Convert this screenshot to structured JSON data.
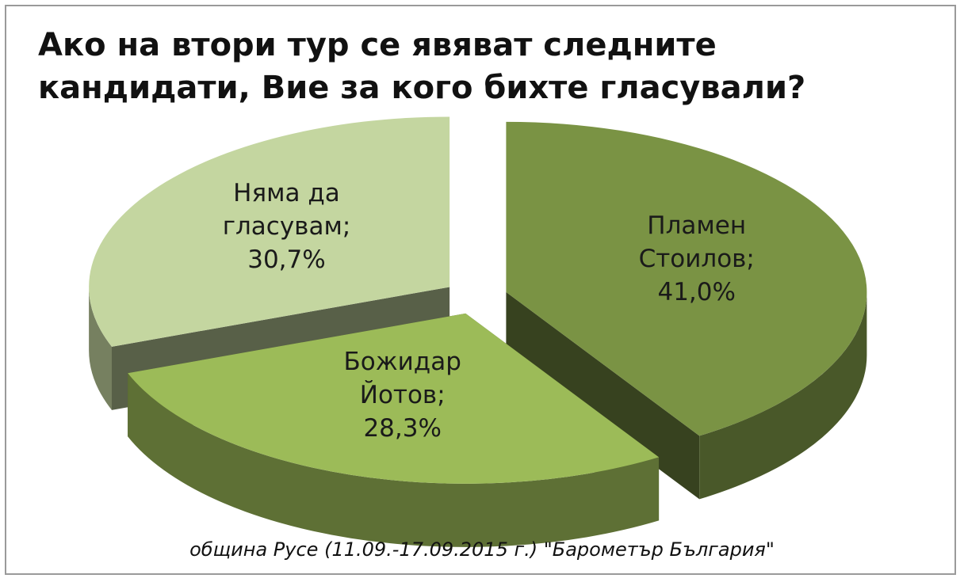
{
  "title_lines": [
    "Ако на втори тур се явяват следните",
    "кандидати, Вие за кого бихте гласували?"
  ],
  "caption": "община Русе (11.09.-17.09.2015 г.) \"Барометър България\"",
  "chart_data": {
    "type": "pie",
    "title": "Ако на втори тур се явяват следните кандидати, Вие за кого бихте гласували?",
    "slices": [
      {
        "name": "Пламен Стоилов",
        "value": 41.0,
        "label_lines": [
          "Пламен",
          "Стоилов;",
          "41,0%"
        ],
        "color": "#7a9344"
      },
      {
        "name": "Божидар Йотов",
        "value": 28.3,
        "label_lines": [
          "Божидар",
          "Йотов;",
          "28,3%"
        ],
        "color": "#9cbb58"
      },
      {
        "name": "Няма да гласувам",
        "value": 30.7,
        "label_lines": [
          "Няма да",
          "гласувам;",
          "30,7%"
        ],
        "color": "#c4d6a0"
      }
    ],
    "legend": "none",
    "exploded": true,
    "three_d": true
  }
}
